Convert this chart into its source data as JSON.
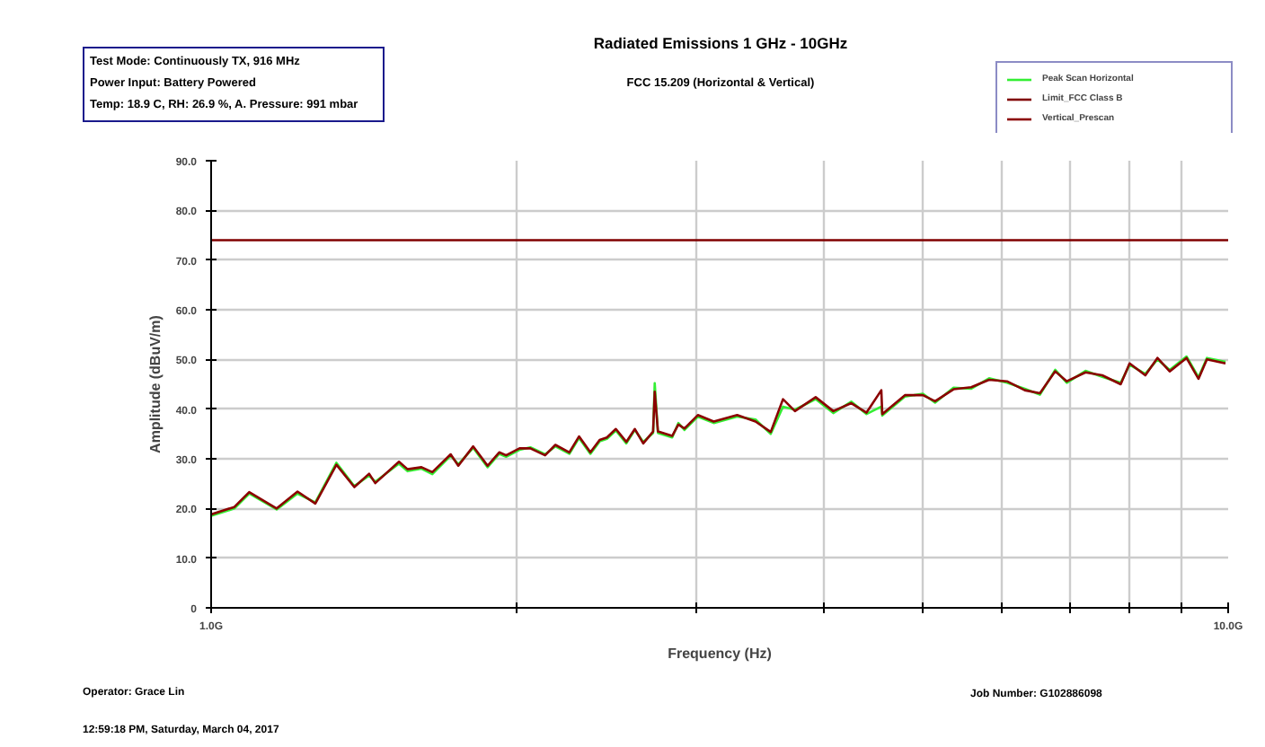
{
  "chart_data": {
    "type": "line",
    "title": "Radiated Emissions 1 GHz - 10GHz",
    "subtitle": "FCC 15.209 (Horizontal & Vertical)",
    "xlabel": "Frequency (Hz)",
    "ylabel": "Amplitude (dBuV/m)",
    "annotations": [
      "Test Mode: Continuously TX, 916 MHz",
      "Power Input: Battery Powered",
      "Temp: 18.9 C, RH: 26.9 %, A. Pressure: 991 mbar",
      "Operator: Grace Lin",
      "12:59:18 PM, Saturday, March 04, 2017",
      "Job Number: G102886098"
    ],
    "x": [
      1.0,
      1.054,
      1.09,
      1.16,
      1.216,
      1.266,
      1.328,
      1.383,
      1.43,
      1.45,
      1.53,
      1.56,
      1.61,
      1.65,
      1.72,
      1.75,
      1.81,
      1.87,
      1.92,
      1.95,
      2.01,
      2.06,
      2.13,
      2.18,
      2.25,
      2.3,
      2.36,
      2.41,
      2.45,
      2.5,
      2.56,
      2.61,
      2.66,
      2.72,
      2.73,
      2.75,
      2.84,
      2.88,
      2.92,
      3.01,
      3.12,
      3.29,
      3.43,
      3.55,
      3.65,
      3.75,
      3.93,
      4.09,
      4.26,
      4.41,
      4.56,
      4.57,
      4.81,
      5.01,
      5.15,
      5.37,
      5.59,
      5.82,
      6.06,
      6.31,
      6.53,
      6.76,
      6.94,
      7.24,
      7.52,
      7.84,
      8.0,
      8.29,
      8.52,
      8.76,
      9.1,
      9.35,
      9.53,
      9.94
    ],
    "series": [
      {
        "name": "Peak Scan Horizontal",
        "color": "#33ee33",
        "values": [
          18.5,
          20.0,
          23.0,
          19.8,
          23.0,
          21.2,
          29.2,
          24.5,
          26.6,
          25.4,
          29.0,
          27.5,
          28.0,
          26.9,
          30.6,
          28.9,
          32.2,
          28.3,
          31.0,
          30.4,
          31.8,
          32.3,
          30.9,
          32.5,
          31.0,
          34.2,
          31.0,
          33.5,
          34.0,
          35.7,
          33.1,
          35.8,
          33.4,
          35.2,
          45.2,
          35.2,
          34.3,
          37.2,
          35.8,
          38.5,
          37.2,
          38.5,
          37.9,
          35.0,
          40.5,
          39.9,
          42.0,
          39.2,
          41.5,
          39.0,
          40.5,
          38.7,
          42.5,
          43.1,
          41.3,
          44.3,
          44.1,
          46.2,
          45.3,
          44.1,
          42.9,
          47.9,
          45.3,
          47.7,
          46.5,
          45.3,
          48.9,
          47.1,
          50.0,
          47.9,
          50.6,
          46.4,
          50.3,
          49.5
        ]
      },
      {
        "name": "Limit_FCC Class B",
        "color": "#800000",
        "x": [
          1.0,
          10.0
        ],
        "values": [
          74.0,
          74.0
        ]
      },
      {
        "name": "Vertical_Prescan",
        "color": "#8b0000",
        "values": [
          18.8,
          20.3,
          23.3,
          20.0,
          23.4,
          21.0,
          28.8,
          24.3,
          27.0,
          25.1,
          29.4,
          27.9,
          28.3,
          27.3,
          30.9,
          28.6,
          32.5,
          28.6,
          31.3,
          30.7,
          32.1,
          32.1,
          30.7,
          32.8,
          31.3,
          34.5,
          31.3,
          33.8,
          34.3,
          36.0,
          33.4,
          36.0,
          33.1,
          35.5,
          43.5,
          35.5,
          34.6,
          36.9,
          36.1,
          38.8,
          37.5,
          38.8,
          37.5,
          35.4,
          42.0,
          39.6,
          42.4,
          39.6,
          41.2,
          39.3,
          43.8,
          39.0,
          42.8,
          42.8,
          41.6,
          44.0,
          44.4,
          45.9,
          45.6,
          43.8,
          43.2,
          47.6,
          45.6,
          47.4,
          46.8,
          45.0,
          49.2,
          46.8,
          50.3,
          47.6,
          50.3,
          46.1,
          50.0,
          49.2
        ]
      }
    ],
    "log": "x",
    "xlim": [
      1,
      10
    ],
    "xticks": [
      {
        "value": 1,
        "label": "1.0G"
      },
      {
        "value": 2,
        "label": null
      },
      {
        "value": 3,
        "label": null
      },
      {
        "value": 4,
        "label": null
      },
      {
        "value": 5,
        "label": null
      },
      {
        "value": 6,
        "label": null
      },
      {
        "value": 7,
        "label": null
      },
      {
        "value": 8,
        "label": null
      },
      {
        "value": 9,
        "label": null
      },
      {
        "value": 10,
        "label": "10.0G"
      }
    ],
    "ylim": [
      0,
      90
    ],
    "yticks": [
      0,
      {
        "value": 10,
        "label": "10.0"
      },
      {
        "value": 20,
        "label": "20.0"
      },
      {
        "value": 30,
        "label": "30.0"
      },
      {
        "value": 40,
        "label": "40.0"
      },
      {
        "value": 50,
        "label": "50.0"
      },
      {
        "value": 60,
        "label": "60.0"
      },
      {
        "value": 70,
        "label": "70.0"
      },
      {
        "value": 80,
        "label": "80.0"
      },
      {
        "value": 90,
        "label": "90.0"
      }
    ],
    "grid": true,
    "legend": "top right",
    "marker": "none",
    "line_style": "solid"
  }
}
